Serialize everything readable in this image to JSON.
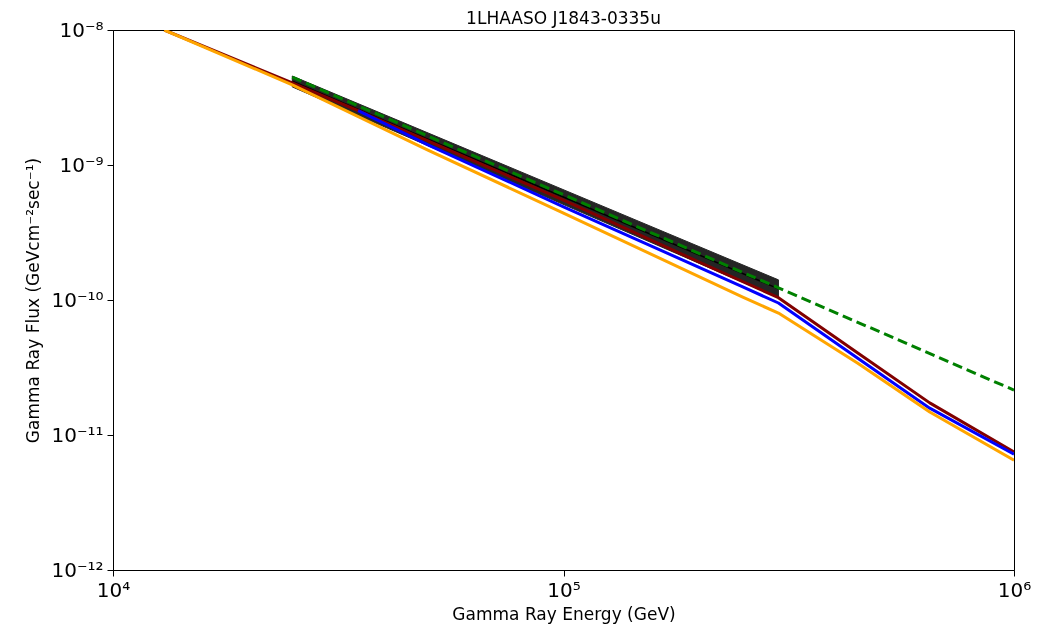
{
  "chart_data": {
    "type": "line",
    "title": "1LHAASO J1843-0335u",
    "xlabel": "Gamma Ray Energy (GeV)",
    "ylabel": "Gamma Ray Flux (GeVcm⁻²sec⁻¹)",
    "log": "xy",
    "grid": false,
    "xlim": [
      10000,
      1000000
    ],
    "ylim": [
      1e-12,
      1e-08
    ],
    "xticks": [
      {
        "value": 10000,
        "label": "10⁴"
      },
      {
        "value": 100000,
        "label": "10⁵"
      },
      {
        "value": 1000000,
        "label": "10⁶"
      }
    ],
    "yticks": [
      {
        "value": 1e-12,
        "label": "10⁻¹²"
      },
      {
        "value": 1e-11,
        "label": "10⁻¹¹"
      },
      {
        "value": 1e-10,
        "label": "10⁻¹⁰"
      },
      {
        "value": 1e-09,
        "label": "10⁻⁹"
      },
      {
        "value": 1e-08,
        "label": "10⁻⁸"
      }
    ],
    "series": [
      {
        "type": "line",
        "color": "#000000",
        "x": [
          25000,
          300000
        ],
        "values": [
          4.17e-09,
          1.21e-10
        ],
        "lower": [
          3.79e-09,
          1.04e-10
        ],
        "upper": [
          4.56e-09,
          1.41e-10
        ]
      },
      {
        "type": "line",
        "color": "#800000",
        "x": [
          13000,
          25000,
          35000,
          50000,
          100000,
          200000,
          300000,
          450000,
          650000,
          1000000
        ],
        "values": [
          1e-08,
          4.05e-09,
          2.53e-09,
          1.51e-09,
          5.5e-10,
          1.91e-10,
          1.04e-10,
          4.05e-11,
          1.73e-11,
          7.5e-12
        ]
      },
      {
        "type": "line",
        "color": "#0000ff",
        "x": [
          35000,
          50000,
          100000,
          250000,
          300000,
          450000,
          650000,
          1000000
        ],
        "values": [
          2.53e-09,
          1.41e-09,
          4.9e-10,
          1.25e-10,
          9.5e-11,
          3.7e-11,
          1.58e-11,
          7.2e-12
        ]
      },
      {
        "type": "line",
        "color": "#ffa500",
        "x": [
          13000,
          25000,
          50000,
          100000,
          250000,
          300000,
          450000,
          650000,
          1000000
        ],
        "values": [
          1e-08,
          3.92e-09,
          1.29e-09,
          4.4e-10,
          1.05e-10,
          8e-11,
          3.4e-11,
          1.48e-11,
          6.5e-12
        ]
      },
      {
        "type": "line",
        "color": "#008000",
        "line_style": "dashed",
        "x": [
          25000,
          300000,
          1000000
        ],
        "values": [
          4.47e-09,
          1.23e-10,
          2.15e-11
        ]
      }
    ]
  }
}
